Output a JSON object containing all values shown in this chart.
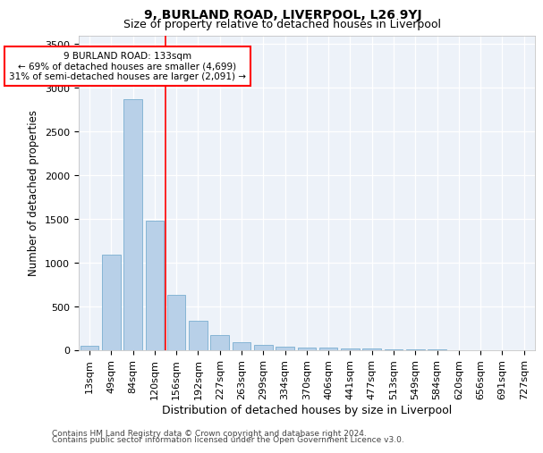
{
  "title1": "9, BURLAND ROAD, LIVERPOOL, L26 9YJ",
  "title2": "Size of property relative to detached houses in Liverpool",
  "xlabel": "Distribution of detached houses by size in Liverpool",
  "ylabel": "Number of detached properties",
  "footnote1": "Contains HM Land Registry data © Crown copyright and database right 2024.",
  "footnote2": "Contains public sector information licensed under the Open Government Licence v3.0.",
  "categories": [
    "13sqm",
    "49sqm",
    "84sqm",
    "120sqm",
    "156sqm",
    "192sqm",
    "227sqm",
    "263sqm",
    "299sqm",
    "334sqm",
    "370sqm",
    "406sqm",
    "441sqm",
    "477sqm",
    "513sqm",
    "549sqm",
    "584sqm",
    "620sqm",
    "656sqm",
    "691sqm",
    "727sqm"
  ],
  "values": [
    50,
    1090,
    2870,
    1480,
    630,
    340,
    175,
    90,
    60,
    45,
    35,
    30,
    25,
    20,
    15,
    10,
    8,
    5,
    4,
    3,
    2
  ],
  "bar_color": "#b8d0e8",
  "bar_edge_color": "#7aaed0",
  "vline_x": 3.5,
  "vline_color": "red",
  "annotation_text": "9 BURLAND ROAD: 133sqm\n← 69% of detached houses are smaller (4,699)\n31% of semi-detached houses are larger (2,091) →",
  "annotation_box_color": "white",
  "annotation_box_edge": "red",
  "ylim": [
    0,
    3600
  ],
  "yticks": [
    0,
    500,
    1000,
    1500,
    2000,
    2500,
    3000,
    3500
  ],
  "plot_bg_color": "#edf2f9",
  "title1_fontsize": 10,
  "title2_fontsize": 9,
  "xlabel_fontsize": 9,
  "ylabel_fontsize": 8.5,
  "tick_fontsize": 8,
  "footnote_fontsize": 6.5
}
